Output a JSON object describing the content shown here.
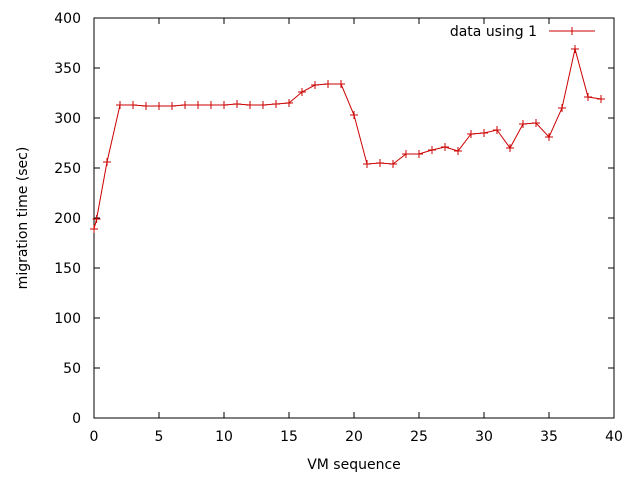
{
  "chart_data": {
    "type": "line",
    "title": "",
    "xlabel": "VM sequence",
    "ylabel": "migration time (sec)",
    "xlim": [
      0,
      40
    ],
    "ylim": [
      0,
      400
    ],
    "xticks": [
      0,
      5,
      10,
      15,
      20,
      25,
      30,
      35,
      40
    ],
    "yticks": [
      0,
      50,
      100,
      150,
      200,
      250,
      300,
      350,
      400
    ],
    "grid": false,
    "legend_position": "top-right",
    "series": [
      {
        "name": "data using 1",
        "color": "#cc0000",
        "marker": "plus",
        "points": [
          [
            0,
            189
          ],
          [
            0.2,
            199
          ],
          [
            1,
            256
          ],
          [
            2,
            313
          ],
          [
            3,
            313
          ],
          [
            4,
            312
          ],
          [
            5,
            312
          ],
          [
            6,
            312
          ],
          [
            7,
            313
          ],
          [
            8,
            313
          ],
          [
            9,
            313
          ],
          [
            10,
            313
          ],
          [
            11,
            314
          ],
          [
            12,
            313
          ],
          [
            13,
            313
          ],
          [
            14,
            314
          ],
          [
            15,
            315
          ],
          [
            16,
            326
          ],
          [
            17,
            333
          ],
          [
            18,
            334
          ],
          [
            19,
            334
          ],
          [
            20,
            303
          ],
          [
            21,
            254
          ],
          [
            22,
            255
          ],
          [
            23,
            254
          ],
          [
            24,
            264
          ],
          [
            25,
            264
          ],
          [
            26,
            268
          ],
          [
            27,
            271
          ],
          [
            28,
            267
          ],
          [
            29,
            284
          ],
          [
            30,
            285
          ],
          [
            31,
            288
          ],
          [
            32,
            270
          ],
          [
            33,
            294
          ],
          [
            34,
            295
          ],
          [
            35,
            281
          ],
          [
            36,
            310
          ],
          [
            37,
            369
          ],
          [
            38,
            321
          ],
          [
            39,
            319
          ]
        ]
      }
    ]
  }
}
